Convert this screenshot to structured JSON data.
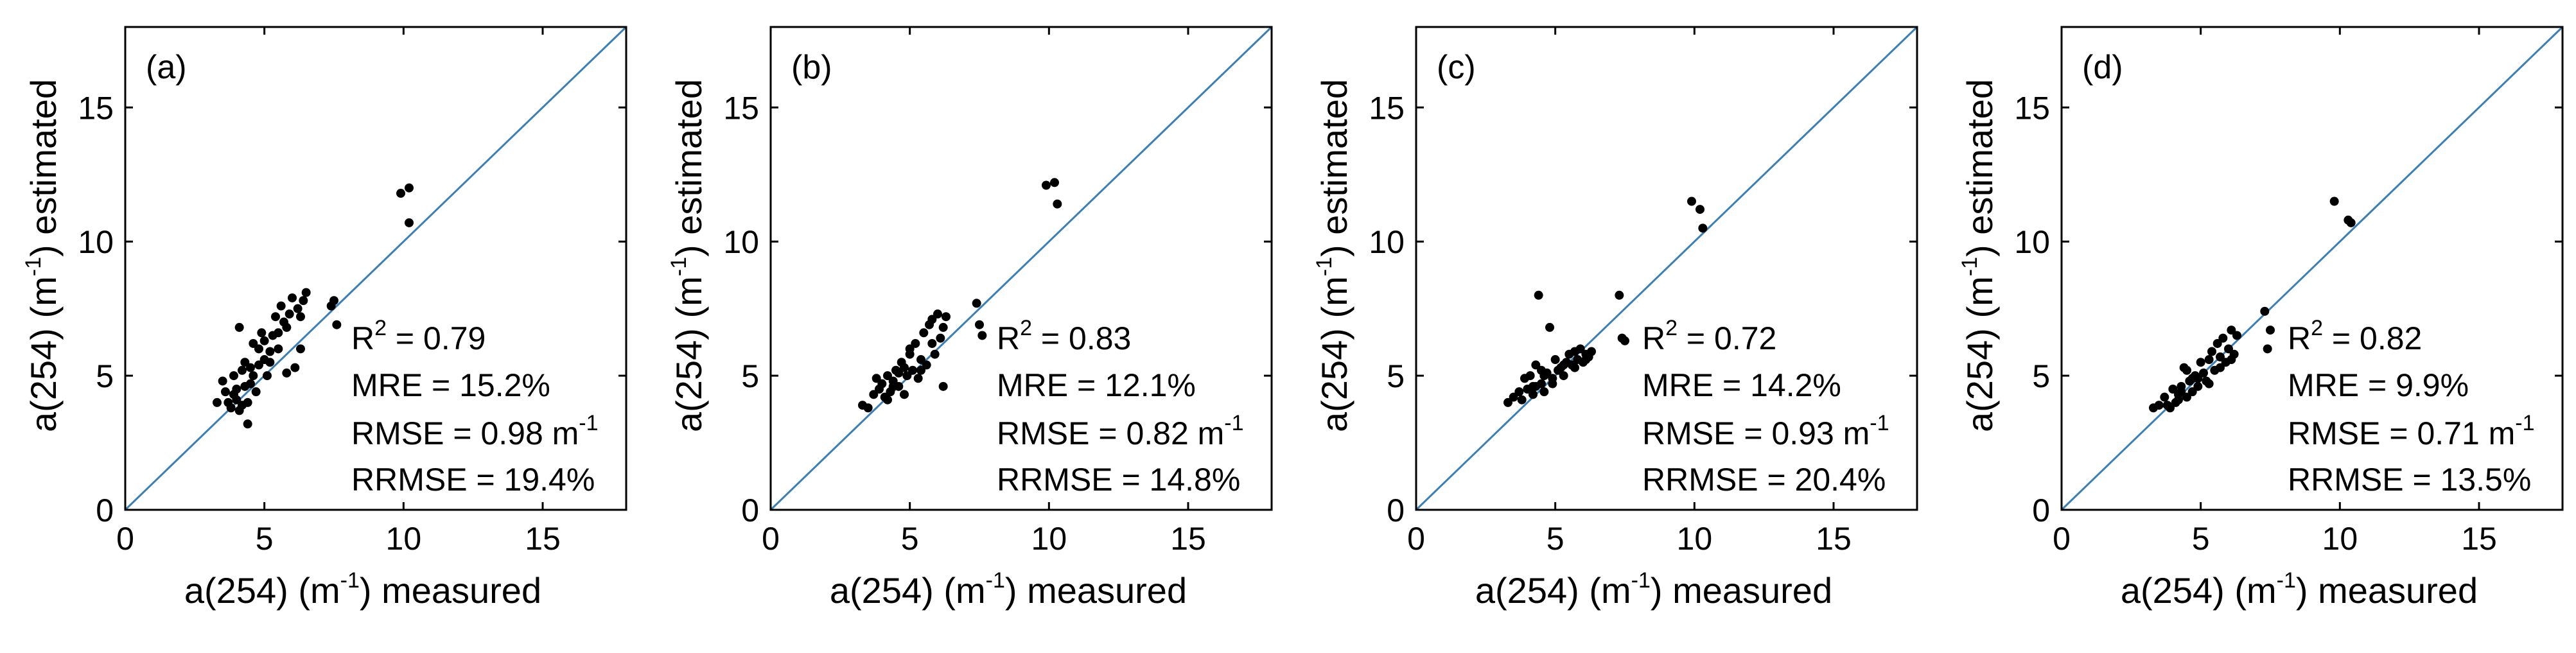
{
  "figure": {
    "panels": [
      {
        "label": "(a)",
        "stats": {
          "r2_prefix": "R",
          "r2_sup": "2",
          "r2_rest": " = 0.79",
          "mre": "MRE = 15.2%",
          "rmse_main": "RMSE = 0.98 m",
          "rmse_sup": "-1",
          "rrmse": "RRMSE = 19.4%"
        }
      },
      {
        "label": "(b)",
        "stats": {
          "r2_prefix": "R",
          "r2_sup": "2",
          "r2_rest": " = 0.83",
          "mre": "MRE = 12.1%",
          "rmse_main": "RMSE = 0.82 m",
          "rmse_sup": "-1",
          "rrmse": "RRMSE = 14.8%"
        }
      },
      {
        "label": "(c)",
        "stats": {
          "r2_prefix": "R",
          "r2_sup": "2",
          "r2_rest": " = 0.72",
          "mre": "MRE = 14.2%",
          "rmse_main": "RMSE = 0.93 m",
          "rmse_sup": "-1",
          "rrmse": "RRMSE = 20.4%"
        }
      },
      {
        "label": "(d)",
        "stats": {
          "r2_prefix": "R",
          "r2_sup": "2",
          "r2_rest": " = 0.82",
          "mre": "MRE = 9.9%",
          "rmse_main": "RMSE = 0.71 m",
          "rmse_sup": "-1",
          "rrmse": "RRMSE = 13.5%"
        }
      }
    ],
    "xlabel": {
      "pre": "a(254) (m",
      "sup": "-1",
      "post": ")  measured"
    },
    "ylabel": {
      "pre": "a(254) (m",
      "sup": "-1",
      "post": ")  estimated"
    }
  },
  "colors": {
    "one_to_one_line": "#3b7fb4",
    "points": "#000000",
    "axes": "#000000"
  },
  "chart_data": [
    {
      "type": "scatter",
      "title": "(a)",
      "xlabel": "a(254) (m-1) measured",
      "ylabel": "a(254) (m-1) estimated",
      "xlim": [
        0,
        18
      ],
      "ylim": [
        0,
        18
      ],
      "xticks": [
        0,
        5,
        10,
        15
      ],
      "yticks": [
        0,
        5,
        10,
        15
      ],
      "reference_line": "1:1",
      "annotations": [
        "R2 = 0.79",
        "MRE = 15.2%",
        "RMSE = 0.98 m-1",
        "RRMSE = 19.4%"
      ],
      "x": [
        3.3,
        3.5,
        3.6,
        3.7,
        3.8,
        3.9,
        4.0,
        4.0,
        4.1,
        4.2,
        4.2,
        4.3,
        4.4,
        4.4,
        4.5,
        4.5,
        4.6,
        4.7,
        4.8,
        4.8,
        4.9,
        5.0,
        5.0,
        5.1,
        5.2,
        5.3,
        5.4,
        5.5,
        5.6,
        5.7,
        5.8,
        5.9,
        6.0,
        6.1,
        6.2,
        6.3,
        6.4,
        6.5,
        3.9,
        4.1,
        4.6,
        5.2,
        5.8,
        6.3,
        7.4,
        7.5,
        7.6,
        9.9,
        10.2,
        10.2,
        4.3,
        5.5
      ],
      "y": [
        4.0,
        4.8,
        4.4,
        4.0,
        3.8,
        4.3,
        4.5,
        4.1,
        3.7,
        3.9,
        5.2,
        4.6,
        4.0,
        3.2,
        4.7,
        5.3,
        5.0,
        4.4,
        6.0,
        5.4,
        6.6,
        5.6,
        6.3,
        5.0,
        5.9,
        6.5,
        7.2,
        6.6,
        7.6,
        7.0,
        5.1,
        7.3,
        7.9,
        5.3,
        7.5,
        6.0,
        7.8,
        8.1,
        5.0,
        6.8,
        6.2,
        5.5,
        6.8,
        7.2,
        7.6,
        7.8,
        6.9,
        11.8,
        12.0,
        10.7,
        5.5,
        6.0
      ]
    },
    {
      "type": "scatter",
      "title": "(b)",
      "xlabel": "a(254) (m-1) measured",
      "ylabel": "a(254) (m-1) estimated",
      "xlim": [
        0,
        18
      ],
      "ylim": [
        0,
        18
      ],
      "xticks": [
        0,
        5,
        10,
        15
      ],
      "yticks": [
        0,
        5,
        10,
        15
      ],
      "reference_line": "1:1",
      "annotations": [
        "R2 = 0.83",
        "MRE = 12.1%",
        "RMSE = 0.82 m-1",
        "RRMSE = 14.8%"
      ],
      "x": [
        3.3,
        3.5,
        3.7,
        3.9,
        4.0,
        4.1,
        4.2,
        4.3,
        4.4,
        4.5,
        4.6,
        4.7,
        4.8,
        4.9,
        5.0,
        5.1,
        5.2,
        5.3,
        5.4,
        5.5,
        5.6,
        5.7,
        5.8,
        5.9,
        6.0,
        6.1,
        6.2,
        6.3,
        3.8,
        4.2,
        4.6,
        5.0,
        5.4,
        5.8,
        6.2,
        7.4,
        7.5,
        7.6,
        9.9,
        10.2,
        10.3,
        4.4,
        4.8
      ],
      "y": [
        3.9,
        3.8,
        4.3,
        4.5,
        4.7,
        4.2,
        5.0,
        4.4,
        4.8,
        5.2,
        4.6,
        5.5,
        4.3,
        5.0,
        5.8,
        5.2,
        6.2,
        4.9,
        5.6,
        6.6,
        5.4,
        6.9,
        7.1,
        5.8,
        7.3,
        6.4,
        6.8,
        7.2,
        4.9,
        4.1,
        5.1,
        6.0,
        5.2,
        6.2,
        4.6,
        7.7,
        6.9,
        6.5,
        12.1,
        12.2,
        11.4,
        4.6,
        5.3
      ]
    },
    {
      "type": "scatter",
      "title": "(c)",
      "xlabel": "a(254) (m-1) measured",
      "ylabel": "a(254) (m-1) estimated",
      "xlim": [
        0,
        18
      ],
      "ylim": [
        0,
        18
      ],
      "xticks": [
        0,
        5,
        10,
        15
      ],
      "yticks": [
        0,
        5,
        10,
        15
      ],
      "reference_line": "1:1",
      "annotations": [
        "R2 = 0.72",
        "MRE = 14.2%",
        "RMSE = 0.93 m-1",
        "RRMSE = 20.4%"
      ],
      "x": [
        3.3,
        3.5,
        3.7,
        3.9,
        4.0,
        4.1,
        4.2,
        4.3,
        4.4,
        4.5,
        4.6,
        4.7,
        4.8,
        4.9,
        5.0,
        5.1,
        5.2,
        5.3,
        5.4,
        5.5,
        5.6,
        5.7,
        5.8,
        5.9,
        6.0,
        6.1,
        6.2,
        6.3,
        3.8,
        4.2,
        4.5,
        4.9,
        5.3,
        5.7,
        6.1,
        7.3,
        7.4,
        7.5,
        9.9,
        10.2,
        10.3,
        4.3,
        4.6
      ],
      "y": [
        4.0,
        4.2,
        4.4,
        4.9,
        4.5,
        5.0,
        4.3,
        4.6,
        8.0,
        4.7,
        4.4,
        5.1,
        6.8,
        4.9,
        5.6,
        5.2,
        5.3,
        5.0,
        5.5,
        5.8,
        5.4,
        5.9,
        5.6,
        6.0,
        5.5,
        5.8,
        5.7,
        5.9,
        4.1,
        4.6,
        5.2,
        4.7,
        5.4,
        5.3,
        5.6,
        8.0,
        6.4,
        6.3,
        11.5,
        11.2,
        10.5,
        5.4,
        5.0
      ]
    },
    {
      "type": "scatter",
      "title": "(d)",
      "xlabel": "a(254) (m-1) measured",
      "ylabel": "a(254) (m-1) estimated",
      "xlim": [
        0,
        18
      ],
      "ylim": [
        0,
        18
      ],
      "xticks": [
        0,
        5,
        10,
        15
      ],
      "yticks": [
        0,
        5,
        10,
        15
      ],
      "reference_line": "1:1",
      "annotations": [
        "R2 = 0.82",
        "MRE = 9.9%",
        "RMSE = 0.71 m-1",
        "RRMSE = 13.5%"
      ],
      "x": [
        3.3,
        3.5,
        3.7,
        3.9,
        4.0,
        4.1,
        4.2,
        4.3,
        4.4,
        4.5,
        4.6,
        4.7,
        4.8,
        4.9,
        5.0,
        5.1,
        5.2,
        5.3,
        5.4,
        5.5,
        5.6,
        5.7,
        5.8,
        5.9,
        6.0,
        6.1,
        6.2,
        6.3,
        3.8,
        4.2,
        4.5,
        4.9,
        5.3,
        5.7,
        6.1,
        7.3,
        7.4,
        7.5,
        9.8,
        10.3,
        10.4,
        4.3,
        4.7
      ],
      "y": [
        3.8,
        3.9,
        4.2,
        3.8,
        4.5,
        4.0,
        4.3,
        4.6,
        5.3,
        4.2,
        4.8,
        4.4,
        5.0,
        4.6,
        5.5,
        5.1,
        4.8,
        5.6,
        5.9,
        5.2,
        6.2,
        5.7,
        6.4,
        5.5,
        6.0,
        6.7,
        5.8,
        6.5,
        3.9,
        4.1,
        5.2,
        4.9,
        4.7,
        5.3,
        5.6,
        7.4,
        6.0,
        6.7,
        11.5,
        10.8,
        10.7,
        4.4,
        4.9
      ]
    }
  ]
}
